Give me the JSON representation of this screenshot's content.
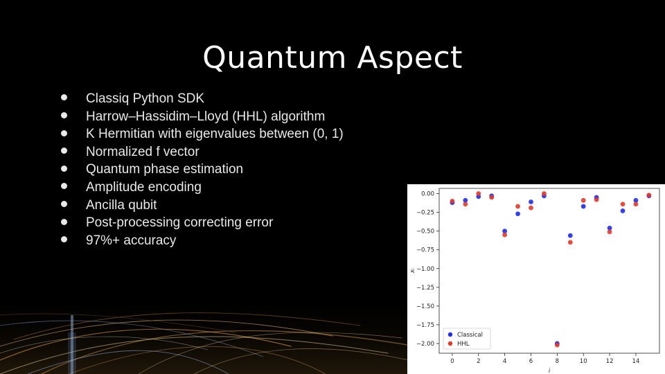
{
  "slide": {
    "title": "Quantum Aspect",
    "bullets": [
      "Classiq Python SDK",
      "Harrow–Hassidim–Lloyd (HHL) algorithm",
      "K Hermitian with eigenvalues between (0, 1)",
      "Normalized f vector",
      "Quantum phase estimation",
      "Amplitude encoding",
      "Ancilla qubit",
      "Post-processing correcting error",
      "97%+ accuracy"
    ]
  },
  "colors": {
    "background": "#000000",
    "classical": "#1f2de6",
    "hhl": "#e03a2c"
  },
  "chart_data": {
    "type": "scatter",
    "xlabel": "i",
    "ylabel": "xᵢ",
    "xlim": [
      -1,
      15.8
    ],
    "ylim": [
      -2.13,
      0.07
    ],
    "xticks": [
      0,
      2,
      4,
      6,
      8,
      10,
      12,
      14
    ],
    "yticks": [
      0.0,
      -0.25,
      -0.5,
      -0.75,
      -1.0,
      -1.25,
      -1.5,
      -1.75,
      -2.0
    ],
    "ytick_labels": [
      "0.00",
      "−0.25",
      "−0.50",
      "−0.75",
      "−1.00",
      "−1.25",
      "−1.50",
      "−1.75",
      "−2.00"
    ],
    "legend_position": "lower-left",
    "grid": false,
    "x": [
      0,
      1,
      2,
      3,
      4,
      5,
      6,
      7,
      8,
      9,
      10,
      11,
      12,
      13,
      14,
      15
    ],
    "series": [
      {
        "name": "Classical",
        "color": "#1f2de6",
        "values": [
          -0.12,
          -0.09,
          -0.04,
          -0.03,
          -0.5,
          -0.27,
          -0.11,
          -0.03,
          -2.0,
          -0.56,
          -0.17,
          -0.05,
          -0.46,
          -0.23,
          -0.09,
          -0.03
        ]
      },
      {
        "name": "HHL",
        "color": "#e03a2c",
        "values": [
          -0.1,
          -0.14,
          0.0,
          -0.05,
          -0.55,
          -0.17,
          -0.19,
          0.0,
          -2.02,
          -0.65,
          -0.09,
          -0.08,
          -0.51,
          -0.14,
          -0.14,
          -0.02
        ]
      }
    ]
  }
}
